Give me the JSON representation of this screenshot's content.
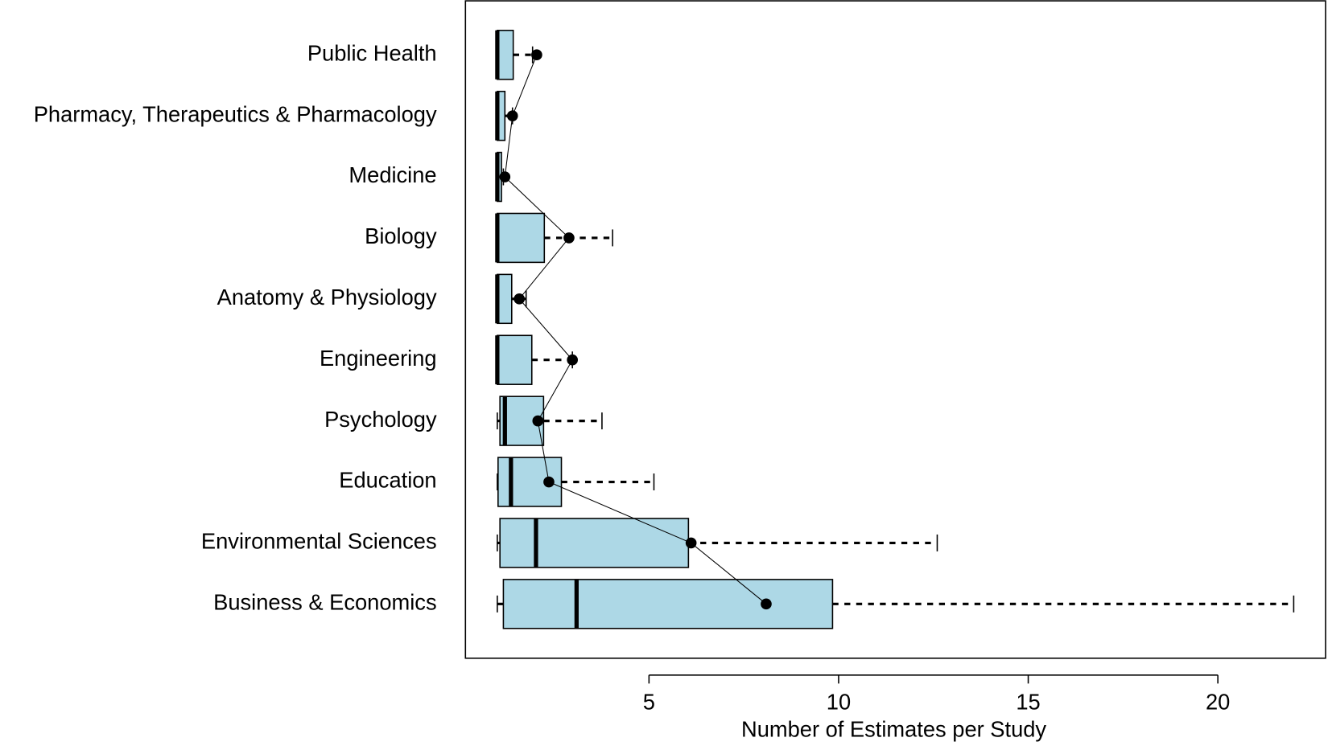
{
  "chart_data": {
    "type": "boxplot",
    "xlabel": "Number of Estimates per Study",
    "categories": [
      "Public Health",
      "Pharmacy, Therapeutics & Pharmacology",
      "Medicine",
      "Biology",
      "Anatomy & Physiology",
      "Engineering",
      "Psychology",
      "Education",
      "Environmental Sciences",
      "Business & Economics"
    ],
    "min": [
      1,
      1,
      1,
      1,
      1,
      1,
      1,
      1,
      1,
      1
    ],
    "q1": [
      1,
      1,
      1,
      1,
      1,
      1,
      1.07,
      1.02,
      1.07,
      1.16
    ],
    "median": [
      1,
      1,
      1,
      1,
      1,
      1,
      1.2,
      1.36,
      2.02,
      3.09
    ],
    "q3": [
      1.42,
      1.2,
      1.11,
      2.24,
      1.38,
      1.91,
      2.22,
      2.69,
      6.04,
      9.84
    ],
    "max": [
      1.93,
      1.4,
      1.16,
      4.04,
      1.76,
      2.98,
      3.76,
      5.13,
      12.6,
      22
    ],
    "mean": [
      2.04,
      1.4,
      1.2,
      2.89,
      1.58,
      2.98,
      2.07,
      2.36,
      6.11,
      8.09
    ],
    "color": "#add8e6",
    "xlim": [
      0.16,
      22.84
    ],
    "xticks": [
      5,
      10,
      15,
      20
    ]
  }
}
